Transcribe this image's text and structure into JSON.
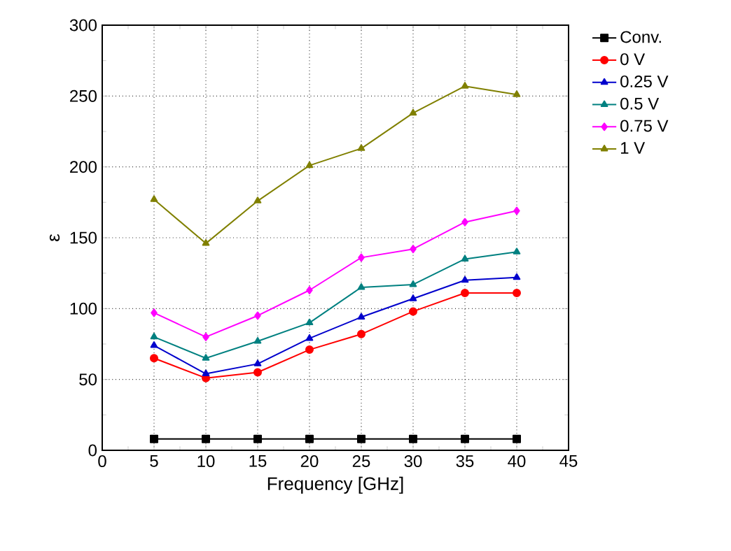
{
  "chart_data": {
    "type": "line",
    "xlabel": "Frequency [GHz]",
    "ylabel": "ε",
    "x": [
      5,
      10,
      15,
      20,
      25,
      30,
      35,
      40
    ],
    "series": [
      {
        "name": "Conv.",
        "color": "#000000",
        "marker": "square",
        "values": [
          8,
          8,
          8,
          8,
          8,
          8,
          8,
          8
        ]
      },
      {
        "name": "0 V",
        "color": "#ff0000",
        "marker": "circle",
        "values": [
          65,
          51,
          55,
          71,
          82,
          98,
          111,
          111
        ]
      },
      {
        "name": "0.25 V",
        "color": "#0000cc",
        "marker": "triangle",
        "values": [
          74,
          54,
          61,
          79,
          94,
          107,
          120,
          122
        ]
      },
      {
        "name": "0.5 V",
        "color": "#008080",
        "marker": "triangle",
        "values": [
          80,
          65,
          77,
          90,
          115,
          117,
          135,
          140
        ]
      },
      {
        "name": "0.75 V",
        "color": "#ff00ff",
        "marker": "diamond",
        "values": [
          97,
          80,
          95,
          113,
          136,
          142,
          161,
          169
        ]
      },
      {
        "name": "1 V",
        "color": "#808000",
        "marker": "triangle",
        "values": [
          177,
          146,
          176,
          201,
          213,
          238,
          257,
          251
        ]
      }
    ],
    "xlim": [
      0,
      45
    ],
    "xticks": [
      0,
      5,
      10,
      15,
      20,
      25,
      30,
      35,
      40,
      45
    ],
    "ylim": [
      0,
      300
    ],
    "yticks": [
      0,
      50,
      100,
      150,
      200,
      250,
      300
    ],
    "grid": true,
    "legend": "right"
  }
}
